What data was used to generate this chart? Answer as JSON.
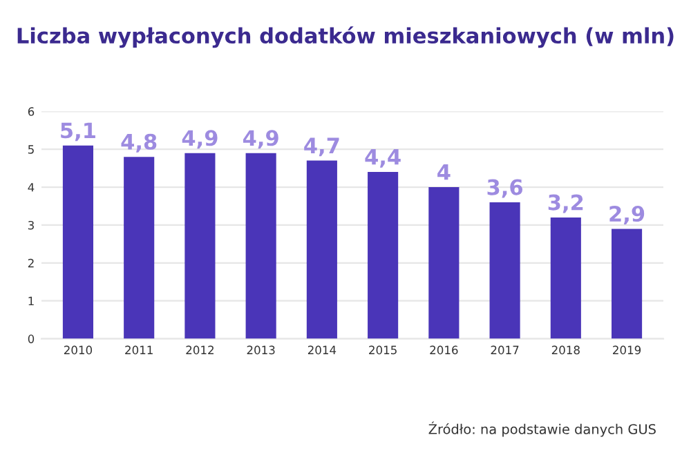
{
  "chart_data": {
    "type": "bar",
    "title": "Liczba wypłaconych dodatków mieszkaniowych (w mln)",
    "categories": [
      "2010",
      "2011",
      "2012",
      "2013",
      "2014",
      "2015",
      "2016",
      "2017",
      "2018",
      "2019"
    ],
    "values": [
      5.1,
      4.8,
      4.9,
      4.9,
      4.7,
      4.4,
      4,
      3.6,
      3.2,
      2.9
    ],
    "value_labels": [
      "5,1",
      "4,8",
      "4,9",
      "4,9",
      "4,7",
      "4,4",
      "4",
      "3,6",
      "3,2",
      "2,9"
    ],
    "color": "#4a35b8",
    "ylim": [
      0,
      6
    ],
    "yticks": [
      0,
      1,
      2,
      3,
      4,
      5,
      6
    ],
    "grid": "y",
    "annotations": [
      "Źródło: na podstawie danych GUS"
    ]
  }
}
